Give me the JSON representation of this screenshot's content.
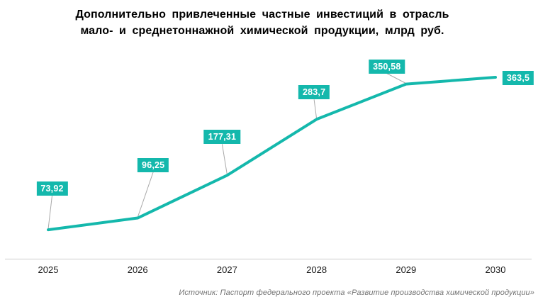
{
  "title_lines": [
    "Дополнительно привлеченные частные инвестиций в отрасль",
    "мало- и среднетоннажной химической продукции, млрд руб."
  ],
  "source": "Источник: Паспорт федерального проекта «Развитие производства химической продукции»",
  "colors": {
    "line": "#14B8AC",
    "label_bg": "#14B8AC",
    "label_text": "#ffffff",
    "leader": "#A9A9A9",
    "axis": "#D9D9D9"
  },
  "chart_data": {
    "type": "line",
    "title": "Дополнительно привлеченные частные инвестиций в отрасль мало- и среднетоннажной химической продукции, млрд руб.",
    "categories": [
      "2025",
      "2026",
      "2027",
      "2028",
      "2029",
      "2030"
    ],
    "values": [
      73.92,
      96.25,
      177.31,
      283.7,
      350.58,
      363.5
    ],
    "point_labels": [
      "73,92",
      "96,25",
      "177,31",
      "283,7",
      "350,58",
      "363,5"
    ],
    "xlabel": "",
    "ylabel": "",
    "ylim": [
      0,
      510
    ],
    "grid": false,
    "legend": false,
    "data_label_style": "teal boxes with white bold text connected by gray leader lines",
    "x_axis_line": true
  }
}
